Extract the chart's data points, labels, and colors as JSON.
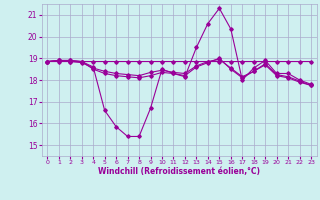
{
  "xlabel": "Windchill (Refroidissement éolien,°C)",
  "ylabel": "",
  "bg_color": "#cff0f0",
  "grid_color": "#aaaacc",
  "line_color": "#990099",
  "xlim": [
    -0.5,
    23.5
  ],
  "ylim": [
    14.5,
    21.5
  ],
  "yticks": [
    15,
    16,
    17,
    18,
    19,
    20,
    21
  ],
  "xticks": [
    0,
    1,
    2,
    3,
    4,
    5,
    6,
    7,
    8,
    9,
    10,
    11,
    12,
    13,
    14,
    15,
    16,
    17,
    18,
    19,
    20,
    21,
    22,
    23
  ],
  "series1_x": [
    0,
    1,
    2,
    3,
    4,
    5,
    6,
    7,
    8,
    9,
    10,
    11,
    12,
    13,
    14,
    15,
    16,
    17,
    18,
    19,
    20,
    21,
    22,
    23
  ],
  "series1_y": [
    18.85,
    18.9,
    18.9,
    18.85,
    18.85,
    18.85,
    18.85,
    18.85,
    18.85,
    18.85,
    18.85,
    18.85,
    18.85,
    18.85,
    18.85,
    18.85,
    18.85,
    18.85,
    18.85,
    18.85,
    18.85,
    18.85,
    18.85,
    18.85
  ],
  "series2_x": [
    0,
    1,
    2,
    3,
    4,
    5,
    6,
    7,
    8,
    9,
    10,
    11,
    12,
    13,
    14,
    15,
    16,
    17,
    18,
    19,
    20,
    21,
    22,
    23
  ],
  "series2_y": [
    18.85,
    18.9,
    18.9,
    18.85,
    18.6,
    16.6,
    15.85,
    15.4,
    15.4,
    16.7,
    18.5,
    18.3,
    18.15,
    19.5,
    20.6,
    21.3,
    20.35,
    18.0,
    18.55,
    18.9,
    18.3,
    18.3,
    18.0,
    17.8
  ],
  "series3_x": [
    0,
    1,
    2,
    3,
    4,
    5,
    6,
    7,
    8,
    9,
    10,
    11,
    12,
    13,
    14,
    15,
    16,
    17,
    18,
    19,
    20,
    21,
    22,
    23
  ],
  "series3_y": [
    18.85,
    18.9,
    18.85,
    18.85,
    18.5,
    18.3,
    18.2,
    18.15,
    18.1,
    18.2,
    18.35,
    18.3,
    18.2,
    18.6,
    18.8,
    19.0,
    18.5,
    18.1,
    18.4,
    18.75,
    18.25,
    18.15,
    17.95,
    17.75
  ],
  "series4_x": [
    0,
    1,
    2,
    3,
    4,
    5,
    6,
    7,
    8,
    9,
    10,
    11,
    12,
    13,
    14,
    15,
    16,
    17,
    18,
    19,
    20,
    21,
    22,
    23
  ],
  "series4_y": [
    18.85,
    18.85,
    18.85,
    18.8,
    18.55,
    18.4,
    18.3,
    18.25,
    18.2,
    18.35,
    18.45,
    18.35,
    18.3,
    18.65,
    18.85,
    18.95,
    18.55,
    18.15,
    18.4,
    18.7,
    18.2,
    18.1,
    17.9,
    17.75
  ]
}
